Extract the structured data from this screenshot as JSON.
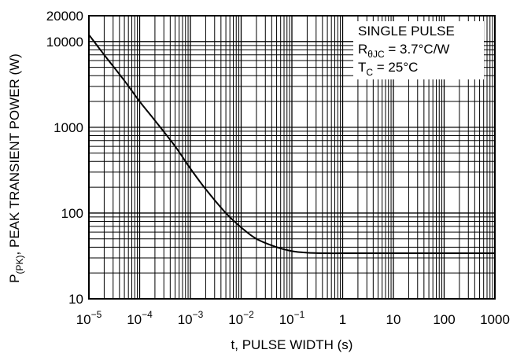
{
  "chart_data": {
    "type": "line",
    "xscale": "log",
    "yscale": "log",
    "xlim": [
      1e-05,
      1000
    ],
    "ylim": [
      10,
      20000
    ],
    "xlabel": "t, PULSE WIDTH (s)",
    "ylabel_main": "P",
    "ylabel_sub": "(PK)",
    "ylabel_rest": ", PEAK TRANSIENT POWER (W)",
    "x_ticks": [
      {
        "value": 1e-05,
        "base": "10",
        "exp": "−5"
      },
      {
        "value": 0.0001,
        "base": "10",
        "exp": "−4"
      },
      {
        "value": 0.001,
        "base": "10",
        "exp": "−3"
      },
      {
        "value": 0.01,
        "base": "10",
        "exp": "−2"
      },
      {
        "value": 0.1,
        "base": "10",
        "exp": "−1"
      },
      {
        "value": 1,
        "base": "1",
        "exp": ""
      },
      {
        "value": 10,
        "base": "10",
        "exp": ""
      },
      {
        "value": 100,
        "base": "100",
        "exp": ""
      },
      {
        "value": 1000,
        "base": "1000",
        "exp": ""
      }
    ],
    "y_ticks": [
      {
        "value": 10,
        "label": "10"
      },
      {
        "value": 100,
        "label": "100"
      },
      {
        "value": 1000,
        "label": "1000"
      },
      {
        "value": 10000,
        "label": "10000"
      },
      {
        "value": 20000,
        "label": "20000"
      }
    ],
    "grid": true,
    "annotation": {
      "line1": "SINGLE PULSE",
      "line2_main": "R",
      "line2_sub": "θJC",
      "line2_rest": " = 3.7°C/W",
      "line3_main": "T",
      "line3_sub": "C",
      "line3_rest": " = 25°C"
    },
    "series": [
      {
        "x": [
          1e-05,
          2e-05,
          5e-05,
          0.0001,
          0.0002,
          0.0005,
          0.001,
          0.002,
          0.005,
          0.01,
          0.02,
          0.05,
          0.1,
          0.2,
          0.5,
          1,
          10,
          100,
          1000
        ],
        "y": [
          12000,
          7000,
          3500,
          2000,
          1200,
          600,
          330,
          190,
          100,
          68,
          50,
          40,
          36,
          34.5,
          34,
          34,
          34,
          34,
          34
        ]
      }
    ]
  }
}
